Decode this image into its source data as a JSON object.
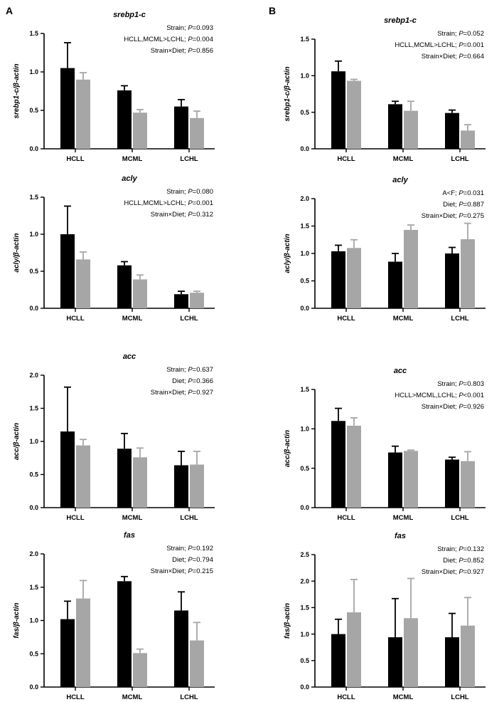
{
  "panels": [
    {
      "letter": "A"
    },
    {
      "letter": "B"
    }
  ],
  "colors": {
    "strain_a": "#000000",
    "strain_b": "#a6a6a6",
    "axis": "#000000"
  },
  "chart_data": [
    {
      "type": "bar",
      "panel": "A",
      "title": "srebp1-c",
      "ylabel": "srebp1-c/β-actin",
      "categories": [
        "HCLL",
        "MCML",
        "LCHL"
      ],
      "ylim": [
        0,
        1.5
      ],
      "yticks": [
        "0.0",
        "0.5",
        "1.0",
        "1.5"
      ],
      "series": [
        {
          "values": [
            1.05,
            0.76,
            0.55
          ],
          "errors": [
            0.33,
            0.06,
            0.09
          ]
        },
        {
          "values": [
            0.9,
            0.47,
            0.4
          ],
          "errors": [
            0.09,
            0.04,
            0.09
          ]
        }
      ],
      "stats": [
        {
          "label": "Strain; ",
          "p": "P",
          "value": "=0.093"
        },
        {
          "label": "HCLL,MCML>LCHL; ",
          "p": "P",
          "value": "=0.004"
        },
        {
          "label": "Strain×Diet; ",
          "p": "P",
          "value": "=0.856"
        }
      ]
    },
    {
      "type": "bar",
      "panel": "A",
      "title": "acly",
      "ylabel": "acly/β-actin",
      "categories": [
        "HCLL",
        "MCML",
        "LCHL"
      ],
      "ylim": [
        0,
        1.5
      ],
      "yticks": [
        "0.0",
        "0.5",
        "1.0",
        "1.5"
      ],
      "series": [
        {
          "values": [
            1.0,
            0.58,
            0.19
          ],
          "errors": [
            0.38,
            0.05,
            0.04
          ]
        },
        {
          "values": [
            0.66,
            0.39,
            0.21
          ],
          "errors": [
            0.1,
            0.06,
            0.02
          ]
        }
      ],
      "stats": [
        {
          "label": "Strain; ",
          "p": "P",
          "value": "=0.080"
        },
        {
          "label": "HCLL,MCML>LCHL; ",
          "p": "P",
          "value": "=0.001"
        },
        {
          "label": "Strain×Diet; ",
          "p": "P",
          "value": "=0.312"
        }
      ]
    },
    {
      "type": "bar",
      "panel": "A",
      "title": "acc",
      "ylabel": "acc/β-actin",
      "categories": [
        "HCLL",
        "MCML",
        "LCHL"
      ],
      "ylim": [
        0,
        2.0
      ],
      "yticks": [
        "0.0",
        "0.5",
        "1.0",
        "1.5",
        "2.0"
      ],
      "series": [
        {
          "values": [
            1.15,
            0.89,
            0.64
          ],
          "errors": [
            0.67,
            0.23,
            0.21
          ]
        },
        {
          "values": [
            0.94,
            0.76,
            0.65
          ],
          "errors": [
            0.09,
            0.14,
            0.2
          ]
        }
      ],
      "stats": [
        {
          "label": "Strain; ",
          "p": "P",
          "value": "=0.637"
        },
        {
          "label": "Diet; ",
          "p": "P",
          "value": "=0.366"
        },
        {
          "label": "Strain×Diet; ",
          "p": "P",
          "value": "=0.927"
        }
      ]
    },
    {
      "type": "bar",
      "panel": "A",
      "title": "fas",
      "ylabel": "fas/β-actin",
      "categories": [
        "HCLL",
        "MCML",
        "LCHL"
      ],
      "ylim": [
        0,
        2.0
      ],
      "yticks": [
        "0.0",
        "0.5",
        "1.0",
        "1.5",
        "2.0"
      ],
      "series": [
        {
          "values": [
            1.02,
            1.59,
            1.15
          ],
          "errors": [
            0.27,
            0.07,
            0.28
          ]
        },
        {
          "values": [
            1.33,
            0.51,
            0.7
          ],
          "errors": [
            0.27,
            0.06,
            0.27
          ]
        }
      ],
      "stats": [
        {
          "label": "Strain; ",
          "p": "P",
          "value": "=0.192"
        },
        {
          "label": "Diet; ",
          "p": "P",
          "value": "=0.794"
        },
        {
          "label": "Strain×Diet; ",
          "p": "P",
          "value": "=0.215"
        }
      ]
    },
    {
      "type": "bar",
      "panel": "B",
      "title": "srebp1-c",
      "ylabel": "srebp1-c/β-actin",
      "categories": [
        "HCLL",
        "MCML",
        "LCHL"
      ],
      "ylim": [
        0,
        1.5
      ],
      "yticks": [
        "0.0",
        "0.5",
        "1.0",
        "1.5"
      ],
      "series": [
        {
          "values": [
            1.06,
            0.61,
            0.49
          ],
          "errors": [
            0.14,
            0.04,
            0.04
          ]
        },
        {
          "values": [
            0.93,
            0.52,
            0.25
          ],
          "errors": [
            0.02,
            0.13,
            0.08
          ]
        }
      ],
      "stats": [
        {
          "label": "Strain; ",
          "p": "P",
          "value": "=0.052"
        },
        {
          "label": "HCLL,MCML>LCHL; ",
          "p": "P",
          "value": "=0.001"
        },
        {
          "label": "Strain×Diet; ",
          "p": "P",
          "value": "=0.664"
        }
      ]
    },
    {
      "type": "bar",
      "panel": "B",
      "title": "acly",
      "ylabel": "acly/β-actin",
      "categories": [
        "HCLL",
        "MCML",
        "LCHL"
      ],
      "ylim": [
        0,
        2.0
      ],
      "yticks": [
        "0.0",
        "0.5",
        "1.0",
        "1.5",
        "2.0"
      ],
      "series": [
        {
          "values": [
            1.04,
            0.85,
            1.0
          ],
          "errors": [
            0.11,
            0.15,
            0.11
          ]
        },
        {
          "values": [
            1.1,
            1.43,
            1.26
          ],
          "errors": [
            0.15,
            0.09,
            0.29
          ]
        }
      ],
      "stats": [
        {
          "label": "A<F; ",
          "p": "P",
          "value": "=0.031"
        },
        {
          "label": "Diet; ",
          "p": "P",
          "value": "=0.887"
        },
        {
          "label": "Strain×Diet; ",
          "p": "P",
          "value": "=0.275"
        }
      ]
    },
    {
      "type": "bar",
      "panel": "B",
      "title": "acc",
      "ylabel": "acc/β-actin",
      "categories": [
        "HCLL",
        "MCML",
        "LCHL"
      ],
      "ylim": [
        0,
        1.5
      ],
      "yticks": [
        "0.0",
        "0.5",
        "1.0",
        "1.5"
      ],
      "series": [
        {
          "values": [
            1.1,
            0.7,
            0.61
          ],
          "errors": [
            0.16,
            0.08,
            0.03
          ]
        },
        {
          "values": [
            1.04,
            0.72,
            0.59
          ],
          "errors": [
            0.1,
            0.01,
            0.12
          ]
        }
      ],
      "stats": [
        {
          "label": "Strain; ",
          "p": "P",
          "value": "=0.803"
        },
        {
          "label": "HCLL>MCML,LCHL; ",
          "p": "P",
          "value": "<0.001"
        },
        {
          "label": "Strain×Diet; ",
          "p": "P",
          "value": "=0.926"
        }
      ]
    },
    {
      "type": "bar",
      "panel": "B",
      "title": "fas",
      "ylabel": "fas/β-actin",
      "categories": [
        "HCLL",
        "MCML",
        "LCHL"
      ],
      "ylim": [
        0,
        2.5
      ],
      "yticks": [
        "0.0",
        "0.5",
        "1.0",
        "1.5",
        "2.0",
        "2.5"
      ],
      "series": [
        {
          "values": [
            1.0,
            0.94,
            0.94
          ],
          "errors": [
            0.28,
            0.73,
            0.45
          ]
        },
        {
          "values": [
            1.41,
            1.3,
            1.16
          ],
          "errors": [
            0.62,
            0.75,
            0.53
          ]
        }
      ],
      "stats": [
        {
          "label": "Strain; ",
          "p": "P",
          "value": "=0.132"
        },
        {
          "label": "Diet; ",
          "p": "P",
          "value": "=0.852"
        },
        {
          "label": "Strain×Diet; ",
          "p": "P",
          "value": "=0.927"
        }
      ]
    }
  ]
}
